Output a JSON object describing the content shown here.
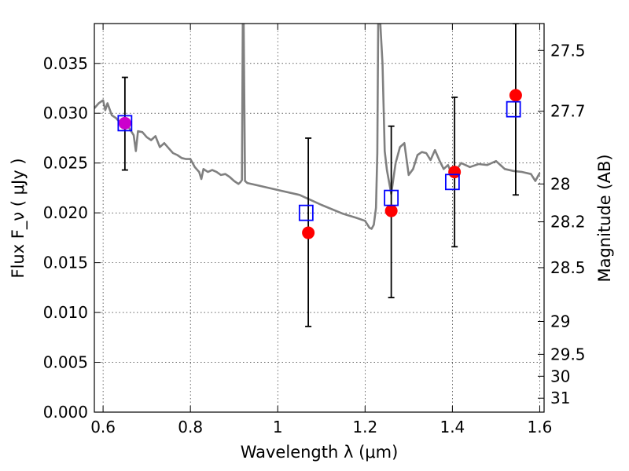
{
  "chart_data": {
    "type": "scatter",
    "title": "",
    "xlabel": "Wavelength  λ (μm)",
    "ylabel": "Flux  F_ν  ( μJy )",
    "y2label": "Magnitude (AB)",
    "xlim": [
      0.58,
      1.61
    ],
    "ylim": [
      0.0,
      0.039
    ],
    "grid": true,
    "x_ticks": [
      0.6,
      0.8,
      1.0,
      1.2,
      1.4,
      1.6
    ],
    "x_tick_labels": [
      "0.6",
      "0.8",
      "1",
      "1.2",
      "1.4",
      "1.6"
    ],
    "y_ticks": [
      0.0,
      0.005,
      0.01,
      0.015,
      0.02,
      0.025,
      0.03,
      0.035
    ],
    "y_tick_labels": [
      "0.000",
      "0.005",
      "0.010",
      "0.015",
      "0.020",
      "0.025",
      "0.030",
      "0.035"
    ],
    "mag_ticks": [
      {
        "label": "27.5",
        "flux": 0.0363
      },
      {
        "label": "27.7",
        "flux": 0.0302
      },
      {
        "label": "28",
        "flux": 0.0229
      },
      {
        "label": "28.2",
        "flux": 0.0191
      },
      {
        "label": "28.5",
        "flux": 0.0145
      },
      {
        "label": "29",
        "flux": 0.0091
      },
      {
        "label": "29.5",
        "flux": 0.0058
      },
      {
        "label": "30",
        "flux": 0.0036
      },
      {
        "label": "31",
        "flux": 0.0014
      }
    ],
    "colors": {
      "sed": "#808080",
      "observed": "#ff0000",
      "model": "#0000ff",
      "highlight": "#cc00cc",
      "errorbar": "#000000"
    },
    "sed_curve": {
      "x": [
        0.58,
        0.59,
        0.6,
        0.605,
        0.61,
        0.62,
        0.63,
        0.64,
        0.65,
        0.66,
        0.67,
        0.675,
        0.68,
        0.69,
        0.7,
        0.71,
        0.72,
        0.73,
        0.74,
        0.75,
        0.76,
        0.77,
        0.78,
        0.79,
        0.8,
        0.81,
        0.82,
        0.825,
        0.83,
        0.84,
        0.85,
        0.86,
        0.87,
        0.88,
        0.89,
        0.9,
        0.91,
        0.915,
        0.918,
        0.92,
        0.922,
        0.925,
        0.93,
        0.95,
        1.0,
        1.05,
        1.1,
        1.15,
        1.18,
        1.2,
        1.21,
        1.215,
        1.22,
        1.225,
        1.228,
        1.23,
        1.235,
        1.24,
        1.245,
        1.25,
        1.26,
        1.27,
        1.28,
        1.29,
        1.3,
        1.31,
        1.32,
        1.33,
        1.34,
        1.35,
        1.36,
        1.37,
        1.38,
        1.39,
        1.4,
        1.42,
        1.44,
        1.46,
        1.48,
        1.5,
        1.52,
        1.54,
        1.56,
        1.58,
        1.59,
        1.6
      ],
      "y": [
        0.0305,
        0.031,
        0.0313,
        0.0303,
        0.031,
        0.0298,
        0.0295,
        0.029,
        0.0292,
        0.0285,
        0.0278,
        0.0262,
        0.0282,
        0.0281,
        0.0276,
        0.0273,
        0.0277,
        0.0266,
        0.027,
        0.0265,
        0.026,
        0.0258,
        0.0255,
        0.0254,
        0.0254,
        0.0246,
        0.0241,
        0.0234,
        0.0244,
        0.0241,
        0.0243,
        0.0241,
        0.0238,
        0.0239,
        0.0236,
        0.0232,
        0.0229,
        0.0231,
        0.0233,
        0.039,
        0.039,
        0.0232,
        0.023,
        0.0228,
        0.0223,
        0.0218,
        0.0208,
        0.0199,
        0.0195,
        0.0192,
        0.0185,
        0.0184,
        0.0188,
        0.0205,
        0.026,
        0.039,
        0.039,
        0.035,
        0.0262,
        0.0243,
        0.0219,
        0.025,
        0.0266,
        0.027,
        0.0238,
        0.0244,
        0.0258,
        0.0261,
        0.026,
        0.0253,
        0.0263,
        0.0253,
        0.0244,
        0.0248,
        0.0237,
        0.025,
        0.0246,
        0.0249,
        0.0248,
        0.0252,
        0.0244,
        0.0242,
        0.0241,
        0.0239,
        0.0232,
        0.024
      ]
    },
    "observed": [
      {
        "x": 0.65,
        "y": 0.029,
        "yerr_low": 0.0243,
        "yerr_high": 0.0336
      },
      {
        "x": 1.07,
        "y": 0.018,
        "yerr_low": 0.0086,
        "yerr_high": 0.0275
      },
      {
        "x": 1.26,
        "y": 0.0202,
        "yerr_low": 0.0115,
        "yerr_high": 0.0287
      },
      {
        "x": 1.405,
        "y": 0.0241,
        "yerr_low": 0.0166,
        "yerr_high": 0.0316
      },
      {
        "x": 1.545,
        "y": 0.0318,
        "yerr_low": 0.0218,
        "yerr_high": 0.039
      }
    ],
    "model_points": [
      {
        "x": 0.65,
        "y": 0.029
      },
      {
        "x": 1.065,
        "y": 0.02
      },
      {
        "x": 1.26,
        "y": 0.0215
      },
      {
        "x": 1.4,
        "y": 0.0231
      },
      {
        "x": 1.54,
        "y": 0.0304
      }
    ]
  }
}
